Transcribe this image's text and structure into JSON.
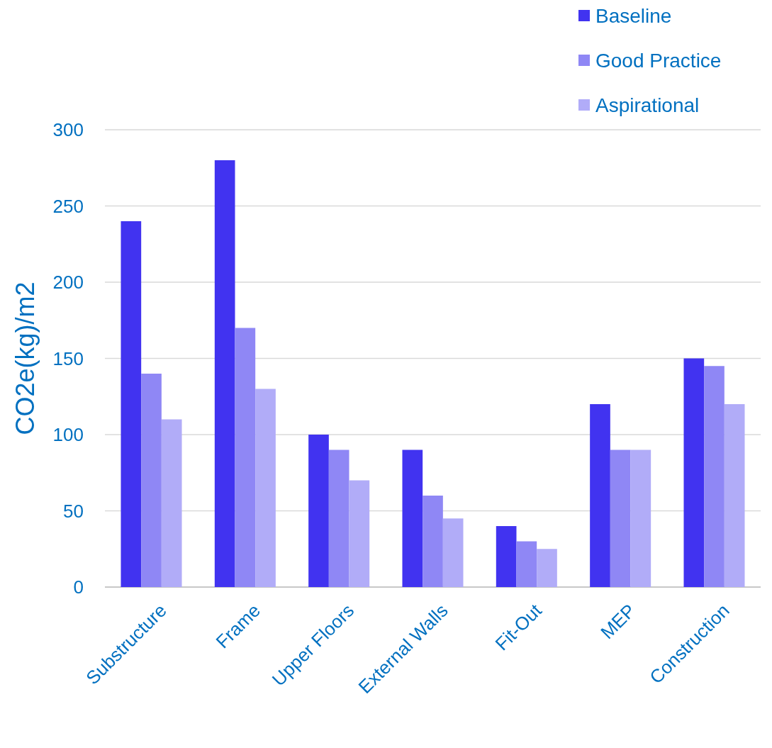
{
  "chart_data": {
    "type": "bar",
    "ylabel": "CO2e(kg)/m2",
    "categories": [
      "Substructure",
      "Frame",
      "Upper Floors",
      "External Walls",
      "Fit-Out",
      "MEP",
      "Construction"
    ],
    "series": [
      {
        "name": "Baseline",
        "color": "#4133f0",
        "values": [
          240,
          280,
          100,
          90,
          40,
          120,
          150
        ]
      },
      {
        "name": "Good Practice",
        "color": "#8f87f5",
        "values": [
          140,
          170,
          90,
          60,
          30,
          90,
          145
        ]
      },
      {
        "name": "Aspirational",
        "color": "#b1acf8",
        "values": [
          110,
          130,
          70,
          45,
          25,
          90,
          120
        ]
      }
    ],
    "ylim": [
      0,
      300
    ],
    "yticks": [
      0,
      50,
      100,
      150,
      200,
      250,
      300
    ],
    "grid": "y",
    "legend": "top right"
  }
}
